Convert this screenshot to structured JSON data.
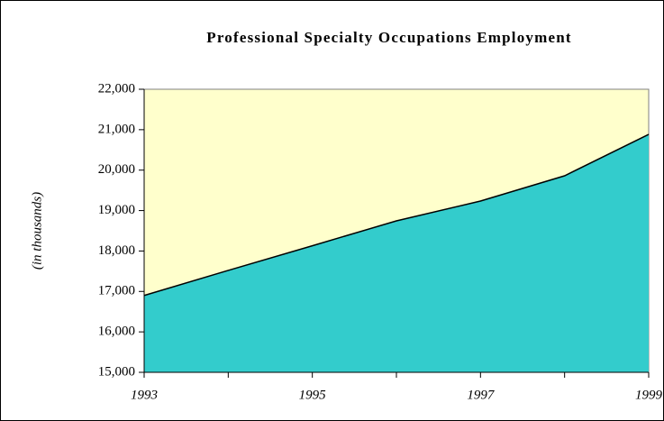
{
  "chart_data": {
    "type": "area",
    "title": "Professional Specialty Occupations Employment",
    "y_label": "(in thousands)",
    "categories": [
      "1993",
      null,
      "1995",
      null,
      "1997",
      null,
      "1999"
    ],
    "values": [
      16900,
      17520,
      18130,
      18745,
      19235,
      19860,
      20885
    ],
    "color": "#33cccc",
    "plot_background": "#ffffcc",
    "ylim": [
      15000,
      22000
    ],
    "yticks": [
      {
        "value": 15000,
        "label": "15,000"
      },
      {
        "value": 16000,
        "label": "16,000"
      },
      {
        "value": 17000,
        "label": "17,000"
      },
      {
        "value": 18000,
        "label": "18,000"
      },
      {
        "value": 19000,
        "label": "19,000"
      },
      {
        "value": 20000,
        "label": "20,000"
      },
      {
        "value": 21000,
        "label": "21,000"
      },
      {
        "value": 22000,
        "label": "22,000"
      }
    ],
    "grid": false
  }
}
